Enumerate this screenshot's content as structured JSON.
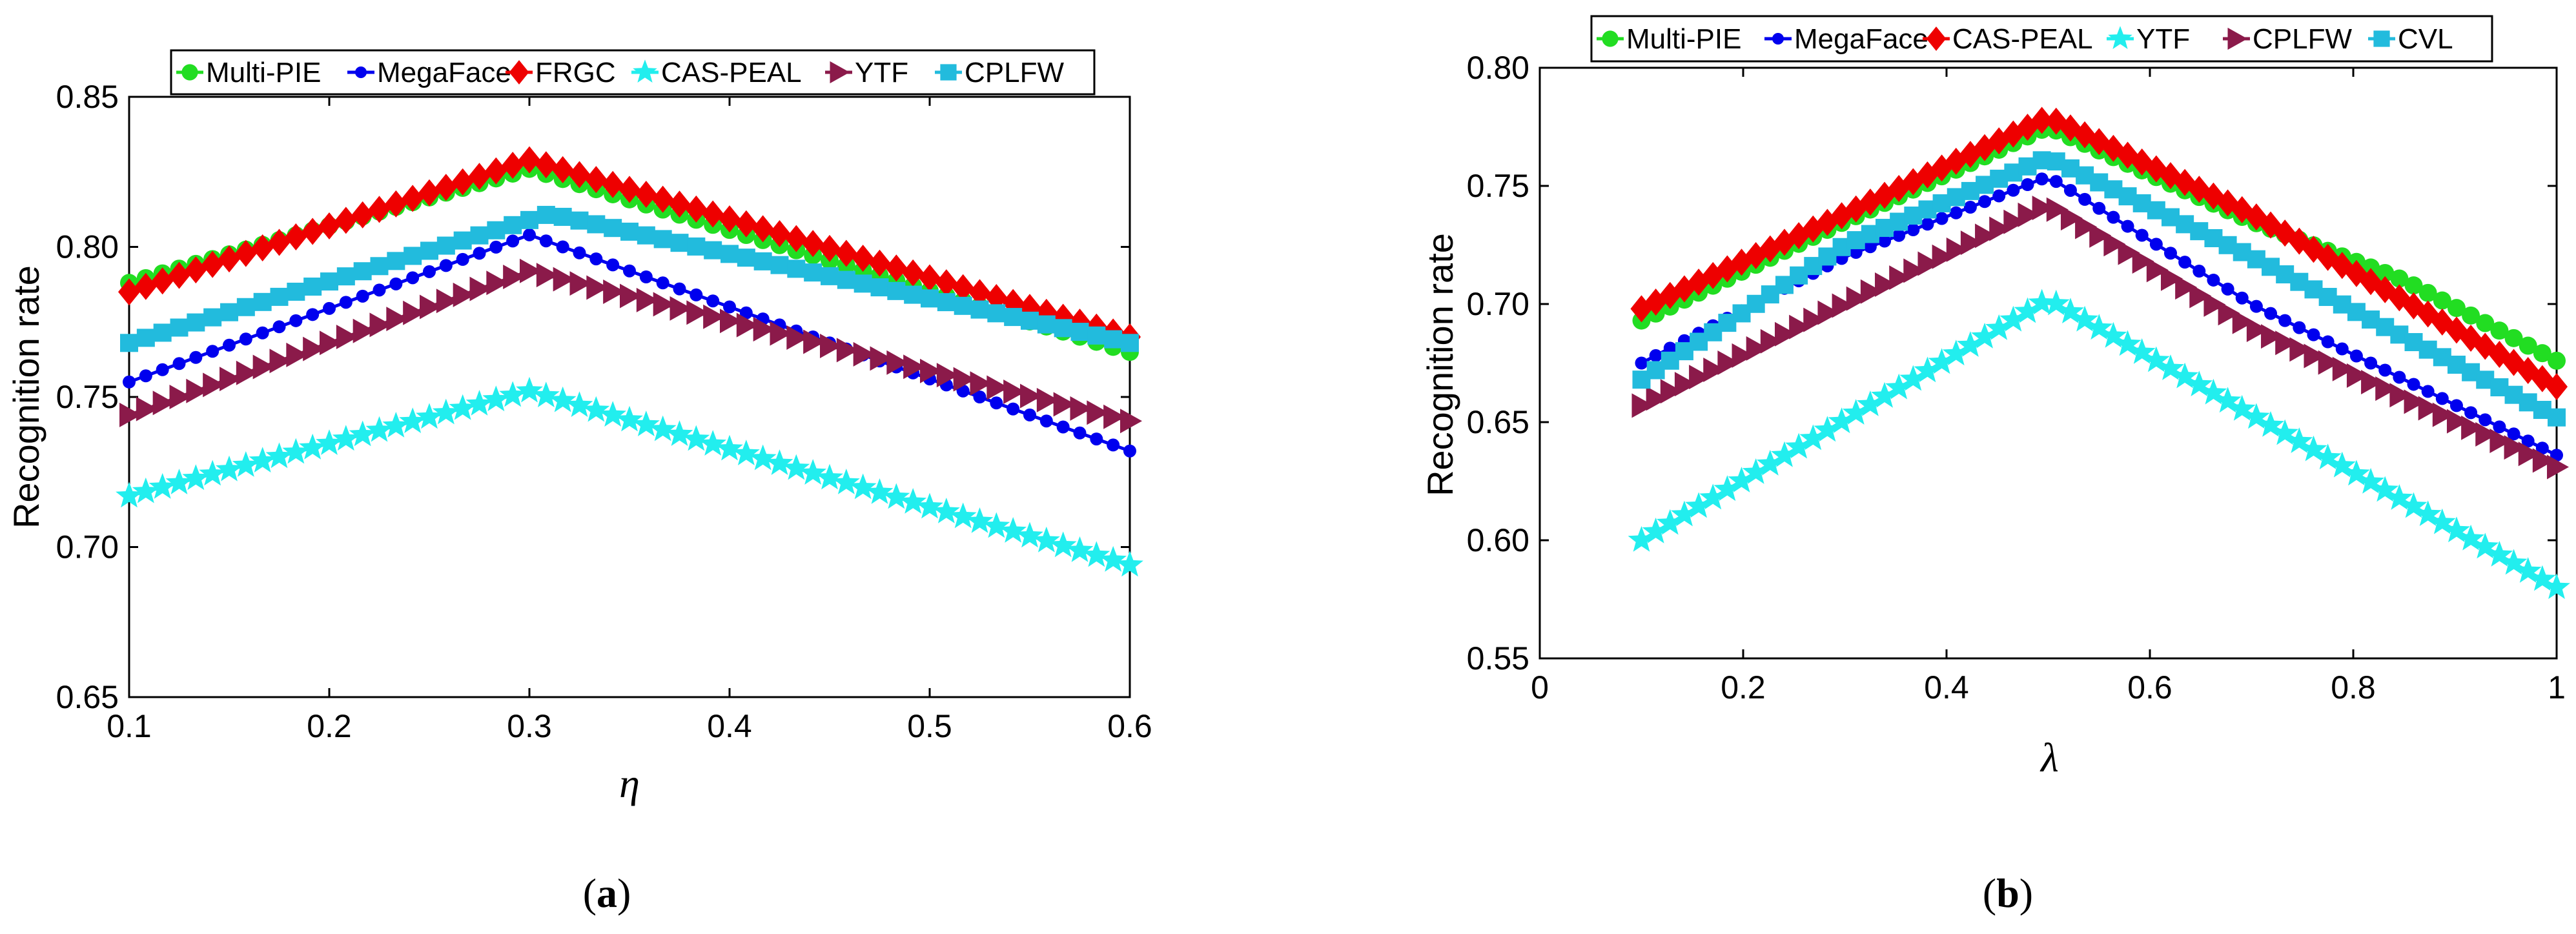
{
  "chart_data": [
    {
      "type": "line",
      "panel": "a",
      "caption": "(a)",
      "caption_parts": [
        "(",
        "a",
        ")"
      ],
      "xlabel": "η",
      "ylabel": "Recognition rate",
      "xlim": [
        0.1,
        0.6
      ],
      "ylim": [
        0.65,
        0.85
      ],
      "xticks": [
        0.1,
        0.2,
        0.3,
        0.4,
        0.5,
        0.6
      ],
      "xtick_labels": [
        "0.1",
        "0.2",
        "0.3",
        "0.4",
        "0.5",
        "0.6"
      ],
      "yticks": [
        0.65,
        0.7,
        0.75,
        0.8,
        0.85
      ],
      "ytick_labels": [
        "0.65",
        "0.70",
        "0.75",
        "0.80",
        "0.85"
      ],
      "grid": false,
      "legend_position": "top",
      "series": [
        {
          "name": "Multi-PIE",
          "color": "#22dd22",
          "marker": "circle",
          "x": [
            0.1,
            0.3,
            0.6
          ],
          "y": [
            0.788,
            0.826,
            0.765
          ]
        },
        {
          "name": "MegaFace",
          "color": "#0000ee",
          "marker": "dot",
          "x": [
            0.1,
            0.3,
            0.6
          ],
          "y": [
            0.755,
            0.804,
            0.732
          ]
        },
        {
          "name": "FRGC",
          "color": "#ee0000",
          "marker": "diamond",
          "x": [
            0.1,
            0.3,
            0.6
          ],
          "y": [
            0.785,
            0.829,
            0.77
          ]
        },
        {
          "name": "CAS-PEAL",
          "color": "#22eeee",
          "marker": "star",
          "x": [
            0.1,
            0.3,
            0.6
          ],
          "y": [
            0.717,
            0.752,
            0.694
          ]
        },
        {
          "name": "YTF",
          "color": "#8b1a4a",
          "marker": "triangle-right",
          "x": [
            0.1,
            0.3,
            0.6
          ],
          "y": [
            0.744,
            0.792,
            0.742
          ]
        },
        {
          "name": "CPLFW",
          "color": "#22bbdd",
          "marker": "square",
          "x": [
            0.1,
            0.31,
            0.6
          ],
          "y": [
            0.768,
            0.811,
            0.768
          ]
        }
      ]
    },
    {
      "type": "line",
      "panel": "b",
      "caption": "(b)",
      "caption_parts": [
        "(",
        "b",
        ")"
      ],
      "xlabel": "λ",
      "ylabel": "Recognition rate",
      "xlim": [
        0,
        1
      ],
      "ylim": [
        0.55,
        0.8
      ],
      "xticks": [
        0,
        0.2,
        0.4,
        0.6,
        0.8,
        1
      ],
      "xtick_labels": [
        "0",
        "0.2",
        "0.4",
        "0.6",
        "0.8",
        "1"
      ],
      "yticks": [
        0.55,
        0.6,
        0.65,
        0.7,
        0.75,
        0.8
      ],
      "ytick_labels": [
        "0.55",
        "0.60",
        "0.65",
        "0.70",
        "0.75",
        "0.80"
      ],
      "grid": false,
      "legend_position": "top",
      "series": [
        {
          "name": "Multi-PIE",
          "color": "#22dd22",
          "marker": "circle",
          "x": [
            0.1,
            0.3,
            0.5,
            0.7,
            0.85,
            1.0
          ],
          "y": [
            0.693,
            0.735,
            0.775,
            0.735,
            0.71,
            0.676
          ]
        },
        {
          "name": "MegaFace",
          "color": "#0000ee",
          "marker": "dot",
          "x": [
            0.1,
            0.3,
            0.5,
            0.7,
            1.0
          ],
          "y": [
            0.675,
            0.72,
            0.754,
            0.7,
            0.636
          ]
        },
        {
          "name": "CAS-PEAL",
          "color": "#ee0000",
          "marker": "diamond",
          "x": [
            0.1,
            0.3,
            0.5,
            0.7,
            1.0
          ],
          "y": [
            0.698,
            0.738,
            0.779,
            0.738,
            0.665
          ]
        },
        {
          "name": "YTF",
          "color": "#22eeee",
          "marker": "star",
          "x": [
            0.1,
            0.5,
            1.0
          ],
          "y": [
            0.6,
            0.702,
            0.58
          ]
        },
        {
          "name": "CPLFW",
          "color": "#8b1a4a",
          "marker": "triangle-right",
          "x": [
            0.1,
            0.3,
            0.5,
            0.7,
            1.0
          ],
          "y": [
            0.657,
            0.7,
            0.742,
            0.69,
            0.631
          ]
        },
        {
          "name": "CVL",
          "color": "#22bbdd",
          "marker": "square",
          "x": [
            0.1,
            0.3,
            0.5,
            0.7,
            1.0
          ],
          "y": [
            0.668,
            0.725,
            0.762,
            0.72,
            0.652
          ]
        }
      ]
    }
  ]
}
